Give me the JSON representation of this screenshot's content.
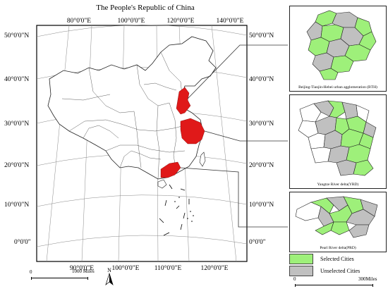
{
  "title": "The People's Republic of China",
  "top_longitude_labels": [
    "80°0'0\"E",
    "100°0'0\"E",
    "120°0'0\"E",
    "140°0'0\"E"
  ],
  "bottom_longitude_labels": [
    "90°0'0\"E",
    "100°0'0\"E",
    "110°0'0\"E",
    "120°0'0\"E"
  ],
  "left_latitude_labels": [
    "50°0'0\"N",
    "40°0'0\"N",
    "30°0'0\"N",
    "20°0'0\"N",
    "10°0'0\"N",
    "0°0'0\""
  ],
  "right_latitude_labels": [
    "50°0'0\"N",
    "40°0'0\"N",
    "30°0'0\"N",
    "20°0'0\"N",
    "10°0'0\"N",
    "0°0'0\""
  ],
  "north_arrow": {
    "label": "N",
    "icon": "north-arrow-icon"
  },
  "main_scale": {
    "start": "0",
    "end": "1000 Miles"
  },
  "insets": [
    {
      "id": "bth",
      "caption": "Beijing-Tianjin-Hebei urban agglomeration (BTH)"
    },
    {
      "id": "yrd",
      "caption": "Yangtze River delta(YRD)"
    },
    {
      "id": "prd",
      "caption": "Pearl River delta(PRD)"
    }
  ],
  "legend": [
    {
      "label": "Selected Cities",
      "color": "#9ef07a"
    },
    {
      "label": "Unselected Cities",
      "color": "#c0c0c0"
    }
  ],
  "inset_scale": {
    "start": "0",
    "end": "300Miles"
  },
  "colors": {
    "highlight_main": "#e01919",
    "selected": "#9ef07a",
    "unselected": "#c0c0c0",
    "boundary": "#222222"
  }
}
